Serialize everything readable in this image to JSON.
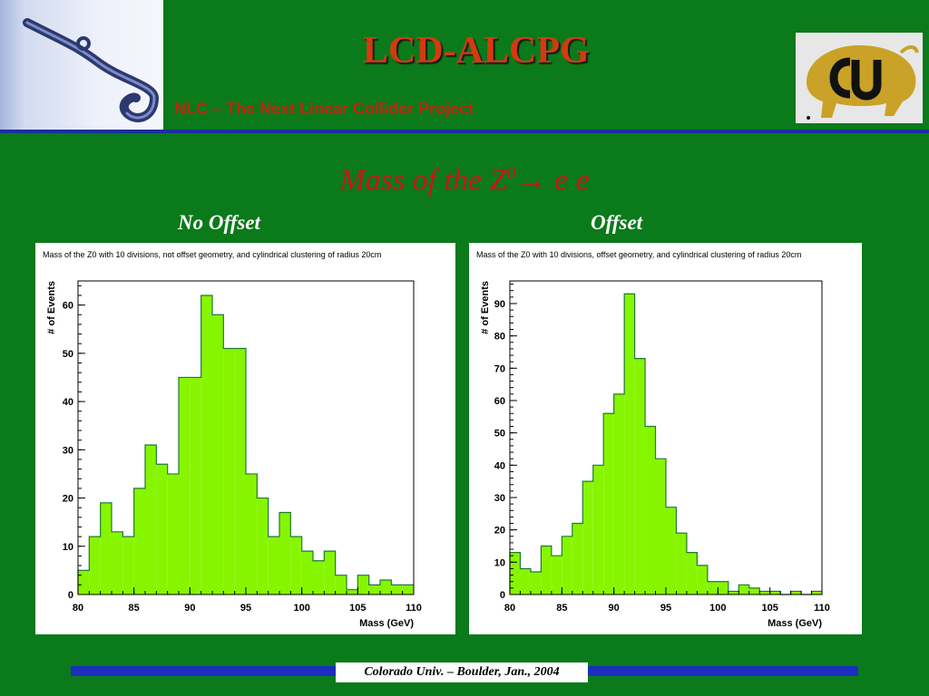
{
  "header": {
    "title": "LCD-ALCPG",
    "subtitle": "NLC – The Next Linear Collider Project"
  },
  "slide": {
    "title_prefix": "Mass of the Z",
    "title_sup": "0",
    "title_arrow": "→",
    "title_suffix": " e e",
    "left_label": "No Offset",
    "right_label": "Offset",
    "footer": "Colorado Univ. – Boulder, Jan., 2004"
  },
  "colors": {
    "bar_fill": "#88f500",
    "bar_outline": "#1d7a3a"
  },
  "chart_data": [
    {
      "type": "bar",
      "title": "Mass of the Z0 with 10 divisions, not offset geometry, and cylindrical clustering of radius 20cm",
      "xlabel": "Mass (GeV)",
      "ylabel": "# of Events",
      "xlim": [
        80,
        110
      ],
      "ylim": [
        0,
        65
      ],
      "xticks": [
        80,
        85,
        90,
        95,
        100,
        105,
        110
      ],
      "yticks": [
        0,
        10,
        20,
        30,
        40,
        50,
        60
      ],
      "bin_edges_start": 80,
      "bin_width": 1,
      "values": [
        5,
        12,
        19,
        13,
        12,
        22,
        31,
        27,
        25,
        45,
        45,
        62,
        58,
        51,
        51,
        25,
        20,
        12,
        17,
        12,
        9,
        7,
        9,
        4,
        1,
        4,
        2,
        3,
        2,
        2
      ]
    },
    {
      "type": "bar",
      "title": "Mass of the Z0 with 10 divisions, offset geometry, and cylindrical clustering of radius 20cm",
      "xlabel": "Mass (GeV)",
      "ylabel": "# of Events",
      "xlim": [
        80,
        110
      ],
      "ylim": [
        0,
        97
      ],
      "xticks": [
        80,
        85,
        90,
        95,
        100,
        105,
        110
      ],
      "yticks": [
        0,
        10,
        20,
        30,
        40,
        50,
        60,
        70,
        80,
        90
      ],
      "bin_edges_start": 80,
      "bin_width": 1,
      "values": [
        13,
        8,
        7,
        15,
        12,
        18,
        22,
        35,
        40,
        56,
        62,
        93,
        73,
        52,
        42,
        27,
        19,
        13,
        9,
        4,
        4,
        1,
        3,
        2,
        1,
        1,
        0,
        1,
        0,
        1
      ]
    }
  ]
}
